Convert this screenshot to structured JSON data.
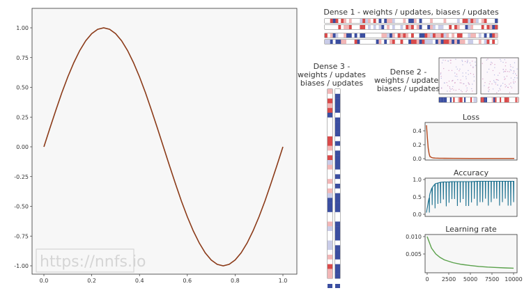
{
  "colors": {
    "main_line": "#8b3a18",
    "loss_line": "#b5461b",
    "accuracy_line": "#1a6f8e",
    "lr_line": "#5aa14b",
    "weight_pos": "#d94a4a",
    "weight_neg": "#3b4ea0",
    "plot_bg": "#f7f7f7"
  },
  "watermark": "https://nnfs.io",
  "main_chart": {
    "type": "line",
    "x_ticks": [
      "0.0",
      "0.2",
      "0.4",
      "0.6",
      "0.8",
      "1.0"
    ],
    "y_ticks": [
      "1.00",
      "0.75",
      "0.50",
      "0.25",
      "0.00",
      "-0.25",
      "-0.50",
      "-0.75",
      "-1.00"
    ]
  },
  "dense1": {
    "title": "Dense 1 - weights / updates, biases / updates"
  },
  "dense2": {
    "title": [
      "Dense 2 -",
      "weights / updates",
      "biases / updates"
    ]
  },
  "dense3": {
    "title": [
      "Dense 3 -",
      "weights / updates",
      "biases / updates"
    ]
  },
  "loss": {
    "title": "Loss",
    "y_ticks": [
      "0.4",
      "0.2",
      "0.0"
    ]
  },
  "accuracy": {
    "title": "Accuracy",
    "y_ticks": [
      "1.0",
      "0.5",
      "0.0"
    ]
  },
  "learning_rate": {
    "title": "Learning rate",
    "y_ticks": [
      "0.010",
      "0.005"
    ],
    "x_ticks": [
      "0",
      "2500",
      "5000",
      "7500",
      "10000"
    ]
  },
  "chart_data": [
    {
      "type": "line",
      "title": "",
      "xlabel": "",
      "ylabel": "",
      "xlim": [
        0,
        1
      ],
      "ylim": [
        -1.0,
        1.0
      ],
      "grid": false,
      "series": [
        {
          "x": [
            0.0,
            0.025,
            0.05,
            0.075,
            0.1,
            0.125,
            0.15,
            0.175,
            0.2,
            0.225,
            0.25,
            0.275,
            0.3,
            0.325,
            0.35,
            0.375,
            0.4,
            0.425,
            0.45,
            0.475,
            0.5,
            0.525,
            0.55,
            0.575,
            0.6,
            0.625,
            0.65,
            0.675,
            0.7,
            0.725,
            0.75,
            0.775,
            0.8,
            0.825,
            0.85,
            0.875,
            0.9,
            0.925,
            0.95,
            0.975,
            1.0
          ],
          "y": [
            0.0,
            0.156,
            0.309,
            0.454,
            0.588,
            0.707,
            0.809,
            0.891,
            0.951,
            0.988,
            1.0,
            0.988,
            0.951,
            0.891,
            0.809,
            0.707,
            0.588,
            0.454,
            0.309,
            0.156,
            0.0,
            -0.156,
            -0.309,
            -0.454,
            -0.588,
            -0.707,
            -0.809,
            -0.891,
            -0.951,
            -0.988,
            -1.0,
            -0.988,
            -0.951,
            -0.891,
            -0.809,
            -0.707,
            -0.588,
            -0.454,
            -0.309,
            -0.156,
            0.0
          ]
        }
      ]
    },
    {
      "type": "line",
      "title": "Loss",
      "xlim": [
        0,
        10000
      ],
      "ylim": [
        0,
        0.5
      ],
      "series": [
        {
          "x": [
            0,
            100,
            200,
            300,
            400,
            600,
            800,
            1000,
            1500,
            2000,
            3000,
            5000,
            7500,
            10000
          ],
          "y": [
            0.48,
            0.3,
            0.15,
            0.07,
            0.03,
            0.015,
            0.01,
            0.008,
            0.006,
            0.005,
            0.004,
            0.003,
            0.003,
            0.003
          ]
        }
      ]
    },
    {
      "type": "line",
      "title": "Accuracy",
      "xlim": [
        0,
        10000
      ],
      "ylim": [
        0,
        1.0
      ],
      "series": [
        {
          "x": [
            0,
            200,
            400,
            600,
            800,
            1000,
            1300,
            1600,
            2000,
            2500,
            3000,
            4000,
            5000,
            6000,
            7000,
            8000,
            9000,
            10000
          ],
          "y": [
            0.05,
            0.35,
            0.6,
            0.75,
            0.82,
            0.88,
            0.9,
            0.92,
            0.93,
            0.93,
            0.94,
            0.94,
            0.94,
            0.95,
            0.95,
            0.95,
            0.95,
            0.95
          ]
        }
      ]
    },
    {
      "type": "line",
      "title": "Learning rate",
      "xlim": [
        0,
        10000
      ],
      "ylim": [
        0,
        0.01
      ],
      "series": [
        {
          "x": [
            0,
            500,
            1000,
            1500,
            2000,
            3000,
            4000,
            5000,
            6000,
            7000,
            8000,
            9000,
            10000
          ],
          "y": [
            0.01,
            0.0067,
            0.005,
            0.004,
            0.0033,
            0.0025,
            0.002,
            0.00167,
            0.00143,
            0.00125,
            0.00111,
            0.001,
            0.00091
          ]
        }
      ]
    }
  ]
}
